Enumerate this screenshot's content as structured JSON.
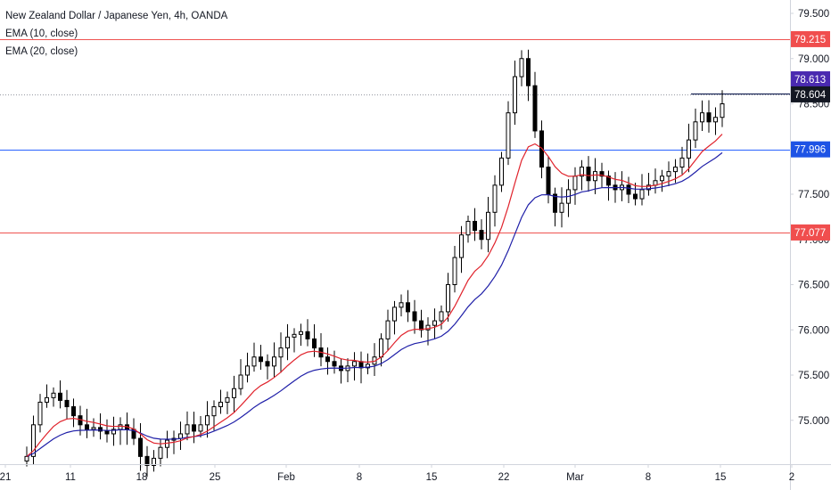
{
  "header": {
    "title": "New Zealand Dollar / Japanese Yen, 4h, OANDA",
    "indicators": [
      "EMA (10, close)",
      "EMA (20, close)"
    ]
  },
  "colors": {
    "candle": "#000000",
    "ema10": "#e0232c",
    "ema20": "#1f1fa8",
    "red_line": "#ef5350",
    "blue_line": "#2962ff",
    "red_tag": "#f04e4e",
    "blue_tag": "#1e53e5",
    "dark_tag": "#131722",
    "purple_tag": "#4a2ab0",
    "axis_text": "#131722",
    "axis_line": "#d1d4dc"
  },
  "chart_data": {
    "type": "candlestick",
    "title": "New Zealand Dollar / Japanese Yen, 4h, OANDA",
    "ylim": [
      74.55,
      79.6
    ],
    "y_ticks": [
      "79.500",
      "79.000",
      "78.500",
      "78.000",
      "77.500",
      "77.000",
      "76.500",
      "76.000",
      "75.500",
      "75.000"
    ],
    "x_ticks": [
      "21",
      "11",
      "18",
      "25",
      "Feb",
      "8",
      "15",
      "22",
      "Mar",
      "8",
      "15",
      "2"
    ],
    "horizontal_levels": [
      {
        "price": 79.215,
        "label": "79.215",
        "color": "red"
      },
      {
        "price": 77.996,
        "label": "77.996",
        "color": "blue"
      },
      {
        "price": 77.077,
        "label": "77.077",
        "color": "red"
      }
    ],
    "price_tags": [
      {
        "price": 78.613,
        "label": "78.613",
        "color": "purple"
      },
      {
        "price": 78.604,
        "label": "78.604",
        "color": "dark"
      }
    ],
    "candles_close": [
      74.6,
      74.95,
      75.2,
      75.25,
      75.3,
      75.22,
      75.15,
      75.05,
      74.95,
      74.9,
      74.92,
      74.88,
      74.85,
      74.9,
      74.95,
      74.9,
      74.8,
      74.6,
      74.5,
      74.58,
      74.7,
      74.78,
      74.8,
      74.85,
      74.95,
      74.88,
      74.95,
      75.05,
      75.15,
      75.2,
      75.25,
      75.35,
      75.5,
      75.6,
      75.7,
      75.65,
      75.6,
      75.7,
      75.8,
      75.92,
      75.95,
      75.98,
      75.9,
      75.8,
      75.7,
      75.65,
      75.6,
      75.55,
      75.6,
      75.65,
      75.58,
      75.62,
      75.7,
      75.9,
      76.1,
      76.25,
      76.3,
      76.2,
      76.1,
      76.0,
      76.05,
      76.1,
      76.2,
      76.5,
      76.8,
      77.05,
      77.2,
      77.1,
      77.0,
      77.3,
      77.6,
      77.9,
      78.4,
      78.8,
      79.0,
      78.7,
      78.2,
      77.8,
      77.5,
      77.3,
      77.4,
      77.55,
      77.7,
      77.8,
      77.65,
      77.75,
      77.7,
      77.6,
      77.55,
      77.6,
      77.5,
      77.45,
      77.55,
      77.6,
      77.65,
      77.7,
      77.75,
      77.8,
      77.9,
      78.1,
      78.3,
      78.4,
      78.3,
      78.35,
      78.5
    ]
  }
}
